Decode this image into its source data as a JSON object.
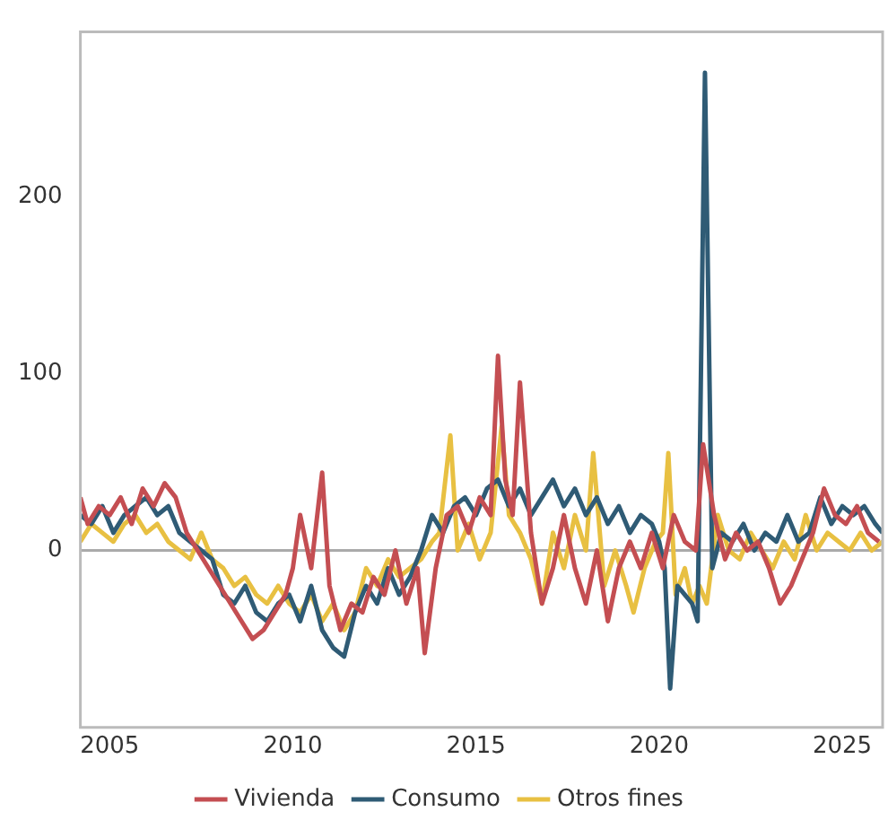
{
  "chart_data": {
    "type": "line",
    "xlim": [
      2004.2,
      2026.1
    ],
    "xticks": [
      2005,
      2010,
      2015,
      2020,
      2025
    ],
    "ylim": [
      -100,
      293
    ],
    "yticks": [
      0,
      100,
      200
    ],
    "grid": false,
    "legend": "bottom",
    "marker": "none",
    "line_style": "solid",
    "ref_lines": [
      {
        "axis": "y",
        "value": 0,
        "color": "#aaaaaa"
      }
    ],
    "series": [
      {
        "name": "Vivienda",
        "color": "#c44e52",
        "x": [
          2004.2,
          2004.4,
          2004.7,
          2005.0,
          2005.3,
          2005.6,
          2005.9,
          2006.2,
          2006.5,
          2006.8,
          2007.1,
          2007.4,
          2007.7,
          2008.0,
          2008.3,
          2008.6,
          2008.9,
          2009.2,
          2009.5,
          2009.8,
          2010.0,
          2010.2,
          2010.5,
          2010.8,
          2011.0,
          2011.3,
          2011.6,
          2011.9,
          2012.2,
          2012.5,
          2012.8,
          2013.1,
          2013.4,
          2013.6,
          2013.9,
          2014.2,
          2014.5,
          2014.8,
          2015.1,
          2015.4,
          2015.6,
          2015.8,
          2016.0,
          2016.2,
          2016.5,
          2016.8,
          2017.1,
          2017.4,
          2017.7,
          2018.0,
          2018.3,
          2018.6,
          2018.9,
          2019.2,
          2019.5,
          2019.8,
          2020.1,
          2020.4,
          2020.7,
          2021.0,
          2021.2,
          2021.5,
          2021.8,
          2022.1,
          2022.4,
          2022.7,
          2023.0,
          2023.3,
          2023.6,
          2023.9,
          2024.2,
          2024.5,
          2024.8,
          2025.1,
          2025.4,
          2025.7,
          2026.0
        ],
        "values": [
          30,
          15,
          25,
          20,
          30,
          15,
          35,
          25,
          38,
          30,
          10,
          0,
          -10,
          -20,
          -30,
          -40,
          -50,
          -45,
          -35,
          -25,
          -10,
          20,
          -10,
          44,
          -20,
          -45,
          -30,
          -35,
          -15,
          -25,
          0,
          -30,
          -10,
          -58,
          -10,
          20,
          25,
          10,
          30,
          20,
          110,
          40,
          20,
          95,
          10,
          -30,
          -10,
          20,
          -10,
          -30,
          0,
          -40,
          -10,
          5,
          -10,
          10,
          -10,
          20,
          5,
          0,
          60,
          20,
          -5,
          10,
          0,
          5,
          -10,
          -30,
          -20,
          -5,
          10,
          35,
          20,
          15,
          25,
          10,
          5
        ]
      },
      {
        "name": "Consumo",
        "color": "#2f5b75",
        "x": [
          2004.2,
          2004.5,
          2004.8,
          2005.1,
          2005.4,
          2005.7,
          2006.0,
          2006.3,
          2006.6,
          2006.9,
          2007.2,
          2007.5,
          2007.8,
          2008.1,
          2008.4,
          2008.7,
          2009.0,
          2009.3,
          2009.6,
          2009.9,
          2010.2,
          2010.5,
          2010.8,
          2011.1,
          2011.4,
          2011.7,
          2012.0,
          2012.3,
          2012.6,
          2012.9,
          2013.2,
          2013.5,
          2013.8,
          2014.1,
          2014.4,
          2014.7,
          2015.0,
          2015.3,
          2015.6,
          2015.9,
          2016.2,
          2016.5,
          2016.8,
          2017.1,
          2017.4,
          2017.7,
          2018.0,
          2018.3,
          2018.6,
          2018.9,
          2019.2,
          2019.5,
          2019.8,
          2020.0,
          2020.15,
          2020.3,
          2020.5,
          2020.7,
          2020.9,
          2021.05,
          2021.25,
          2021.45,
          2021.7,
          2022.0,
          2022.3,
          2022.6,
          2022.9,
          2023.2,
          2023.5,
          2023.8,
          2024.1,
          2024.4,
          2024.7,
          2025.0,
          2025.3,
          2025.6,
          2025.9,
          2026.1
        ],
        "values": [
          20,
          15,
          25,
          10,
          20,
          25,
          30,
          20,
          25,
          10,
          5,
          0,
          -5,
          -25,
          -30,
          -20,
          -35,
          -40,
          -30,
          -25,
          -40,
          -20,
          -45,
          -55,
          -60,
          -35,
          -20,
          -30,
          -10,
          -25,
          -15,
          0,
          20,
          10,
          25,
          30,
          20,
          35,
          40,
          25,
          35,
          20,
          30,
          40,
          25,
          35,
          20,
          30,
          15,
          25,
          10,
          20,
          15,
          5,
          -10,
          -78,
          -20,
          -25,
          -30,
          -40,
          270,
          -10,
          10,
          5,
          15,
          0,
          10,
          5,
          20,
          5,
          10,
          30,
          15,
          25,
          20,
          25,
          15,
          10
        ]
      },
      {
        "name": "Otros fines",
        "color": "#e8c042",
        "x": [
          2004.2,
          2004.5,
          2004.8,
          2005.1,
          2005.4,
          2005.7,
          2006.0,
          2006.3,
          2006.6,
          2006.9,
          2007.2,
          2007.5,
          2007.8,
          2008.1,
          2008.4,
          2008.7,
          2009.0,
          2009.3,
          2009.6,
          2009.9,
          2010.2,
          2010.5,
          2010.8,
          2011.1,
          2011.4,
          2011.7,
          2012.0,
          2012.3,
          2012.6,
          2012.9,
          2013.2,
          2013.5,
          2013.8,
          2014.0,
          2014.3,
          2014.5,
          2014.8,
          2015.1,
          2015.4,
          2015.7,
          2015.9,
          2016.2,
          2016.5,
          2016.8,
          2017.1,
          2017.4,
          2017.7,
          2018.0,
          2018.2,
          2018.5,
          2018.8,
          2019.1,
          2019.3,
          2019.6,
          2019.9,
          2020.1,
          2020.25,
          2020.45,
          2020.7,
          2020.9,
          2021.1,
          2021.3,
          2021.6,
          2021.9,
          2022.2,
          2022.5,
          2022.8,
          2023.1,
          2023.4,
          2023.7,
          2024.0,
          2024.3,
          2024.6,
          2024.9,
          2025.2,
          2025.5,
          2025.8,
          2026.1
        ],
        "values": [
          5,
          15,
          10,
          5,
          15,
          20,
          10,
          15,
          5,
          0,
          -5,
          10,
          -5,
          -10,
          -20,
          -15,
          -25,
          -30,
          -20,
          -30,
          -35,
          -25,
          -40,
          -30,
          -45,
          -35,
          -10,
          -20,
          -5,
          -15,
          -10,
          -5,
          5,
          10,
          65,
          0,
          15,
          -5,
          10,
          70,
          20,
          10,
          -5,
          -30,
          10,
          -10,
          20,
          0,
          55,
          -20,
          0,
          -20,
          -35,
          -10,
          5,
          10,
          55,
          -25,
          -10,
          -30,
          -20,
          -30,
          20,
          0,
          -5,
          10,
          0,
          -10,
          5,
          -5,
          20,
          0,
          10,
          5,
          0,
          10,
          0,
          5
        ]
      }
    ]
  }
}
